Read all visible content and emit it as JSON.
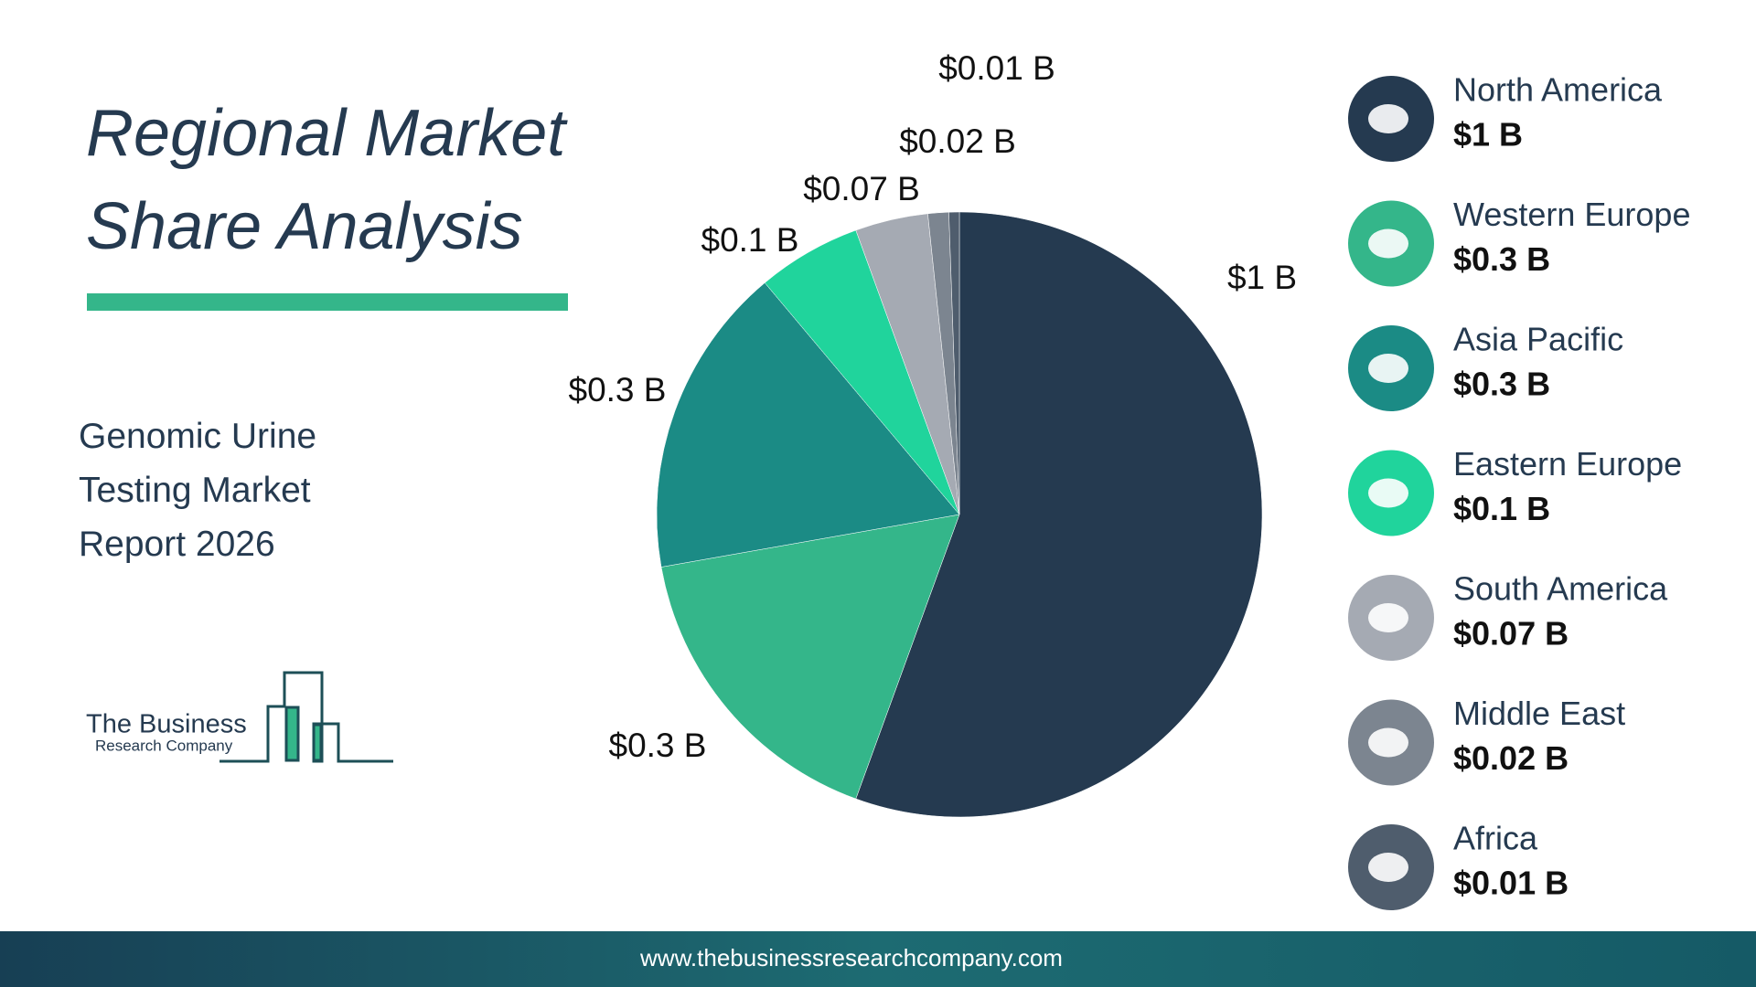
{
  "chart_data": {
    "type": "pie",
    "title": "Regional Market Share Analysis",
    "subtitle": "Genomic Urine Testing Market Report 2026",
    "categories": [
      "North America",
      "Western Europe",
      "Asia Pacific",
      "Eastern Europe",
      "South America",
      "Middle East",
      "Africa"
    ],
    "values": [
      1,
      0.3,
      0.3,
      0.1,
      0.07,
      0.02,
      0.01
    ],
    "value_labels": [
      "$1 B",
      "$0.3 B",
      "$0.3 B",
      "$0.1 B",
      "$0.07 B",
      "$0.02 B",
      "$0.01 B"
    ],
    "colors": [
      "#253a50",
      "#34b68a",
      "#1b8b85",
      "#20d49c",
      "#a5aab3",
      "#7c8590",
      "#4f5d6d"
    ]
  },
  "logo": {
    "line1": "The Business",
    "line2": "Research Company"
  },
  "footer": "www.thebusinessresearchcompany.com"
}
